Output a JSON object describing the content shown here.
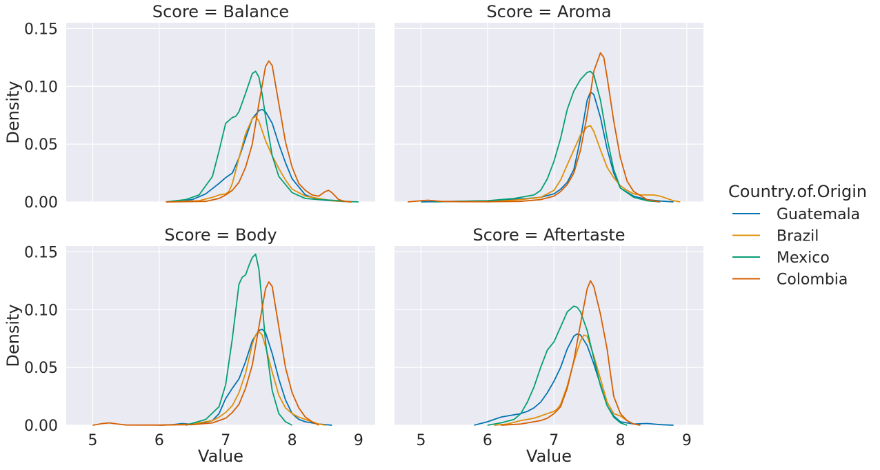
{
  "chart_data": {
    "type": "line",
    "xlabel": "Value",
    "ylabel": "Density",
    "xlim": [
      4.6,
      9.25
    ],
    "ylim": [
      0,
      0.155
    ],
    "xticks": [
      "5",
      "6",
      "7",
      "8",
      "9"
    ],
    "yticks": [
      "0.00",
      "0.05",
      "0.10",
      "0.15"
    ],
    "legend": {
      "title": "Country.of.Origin",
      "placement": "right",
      "entries": [
        "Guatemala",
        "Brazil",
        "Mexico",
        "Colombia"
      ]
    },
    "colors": {
      "Guatemala": "#0173b2",
      "Brazil": "#de8f05",
      "Mexico": "#029e73",
      "Colombia": "#d55e00"
    },
    "grid": true,
    "panels": [
      {
        "title": "Score = Balance",
        "series": [
          {
            "name": "Guatemala",
            "x": [
              6.1,
              6.5,
              6.7,
              6.9,
              7.0,
              7.1,
              7.2,
              7.3,
              7.4,
              7.5,
              7.55,
              7.6,
              7.7,
              7.8,
              7.9,
              8.0,
              8.2,
              8.4,
              8.6,
              8.8,
              8.9
            ],
            "y": [
              0,
              0.002,
              0.007,
              0.016,
              0.021,
              0.025,
              0.038,
              0.055,
              0.072,
              0.079,
              0.08,
              0.078,
              0.068,
              0.05,
              0.034,
              0.02,
              0.006,
              0.002,
              0.001,
              0.0003,
              0
            ]
          },
          {
            "name": "Brazil",
            "x": [
              6.1,
              6.6,
              6.8,
              6.9,
              7.0,
              7.05,
              7.1,
              7.2,
              7.3,
              7.4,
              7.45,
              7.5,
              7.6,
              7.7,
              7.8,
              7.9,
              8.0,
              8.2,
              8.4,
              8.6,
              8.8,
              8.9
            ],
            "y": [
              0,
              0.001,
              0.004,
              0.006,
              0.007,
              0.009,
              0.016,
              0.038,
              0.059,
              0.072,
              0.074,
              0.07,
              0.053,
              0.04,
              0.029,
              0.019,
              0.011,
              0.005,
              0.003,
              0.001,
              0.0003,
              0
            ]
          },
          {
            "name": "Mexico",
            "x": [
              6.1,
              6.4,
              6.6,
              6.8,
              6.9,
              7.0,
              7.1,
              7.15,
              7.2,
              7.3,
              7.4,
              7.45,
              7.5,
              7.55,
              7.6,
              7.7,
              7.8,
              8.0,
              8.2,
              8.4,
              8.6,
              8.8,
              9.0
            ],
            "y": [
              0,
              0.002,
              0.006,
              0.022,
              0.044,
              0.068,
              0.073,
              0.074,
              0.078,
              0.094,
              0.111,
              0.113,
              0.108,
              0.093,
              0.074,
              0.04,
              0.022,
              0.008,
              0.003,
              0.002,
              0.0015,
              0.0005,
              0
            ]
          },
          {
            "name": "Colombia",
            "x": [
              6.1,
              6.7,
              6.9,
              7.0,
              7.1,
              7.2,
              7.3,
              7.4,
              7.5,
              7.6,
              7.65,
              7.7,
              7.8,
              7.9,
              8.0,
              8.1,
              8.2,
              8.3,
              8.4,
              8.5,
              8.55,
              8.6,
              8.7,
              8.8,
              8.9
            ],
            "y": [
              0,
              0.0005,
              0.003,
              0.006,
              0.01,
              0.017,
              0.03,
              0.05,
              0.085,
              0.117,
              0.122,
              0.118,
              0.085,
              0.052,
              0.03,
              0.016,
              0.01,
              0.006,
              0.005,
              0.009,
              0.01,
              0.008,
              0.002,
              0.0005,
              0
            ]
          }
        ]
      },
      {
        "title": "Score = Aroma",
        "series": [
          {
            "name": "Guatemala",
            "x": [
              5.0,
              5.5,
              6.0,
              6.3,
              6.6,
              6.8,
              7.0,
              7.1,
              7.2,
              7.3,
              7.4,
              7.5,
              7.55,
              7.6,
              7.7,
              7.8,
              7.9,
              8.0,
              8.2,
              8.4,
              8.6,
              8.8
            ],
            "y": [
              0,
              0.0005,
              0.001,
              0.002,
              0.003,
              0.004,
              0.007,
              0.011,
              0.017,
              0.028,
              0.055,
              0.088,
              0.095,
              0.093,
              0.073,
              0.046,
              0.025,
              0.012,
              0.005,
              0.002,
              0.0008,
              0
            ]
          },
          {
            "name": "Brazil",
            "x": [
              6.0,
              6.5,
              6.8,
              7.0,
              7.1,
              7.2,
              7.3,
              7.4,
              7.5,
              7.55,
              7.6,
              7.7,
              7.8,
              7.9,
              8.0,
              8.1,
              8.2,
              8.3,
              8.4,
              8.5,
              8.6,
              8.8,
              8.9
            ],
            "y": [
              0,
              0.002,
              0.004,
              0.01,
              0.019,
              0.032,
              0.045,
              0.058,
              0.065,
              0.066,
              0.061,
              0.045,
              0.03,
              0.021,
              0.014,
              0.01,
              0.007,
              0.006,
              0.006,
              0.006,
              0.005,
              0.001,
              0
            ]
          },
          {
            "name": "Mexico",
            "x": [
              5.2,
              6.0,
              6.4,
              6.7,
              6.8,
              6.9,
              7.0,
              7.1,
              7.2,
              7.3,
              7.4,
              7.5,
              7.55,
              7.6,
              7.7,
              7.8,
              7.9,
              8.0,
              8.2,
              8.4,
              8.6
            ],
            "y": [
              0,
              0.001,
              0.003,
              0.006,
              0.01,
              0.02,
              0.035,
              0.055,
              0.08,
              0.096,
              0.106,
              0.112,
              0.113,
              0.11,
              0.088,
              0.055,
              0.028,
              0.012,
              0.004,
              0.001,
              0
            ]
          },
          {
            "name": "Colombia",
            "x": [
              4.8,
              5.0,
              5.1,
              5.3,
              5.6,
              6.0,
              6.5,
              6.8,
              7.0,
              7.1,
              7.2,
              7.3,
              7.4,
              7.5,
              7.6,
              7.7,
              7.75,
              7.8,
              7.9,
              8.0,
              8.1,
              8.2,
              8.4,
              8.6
            ],
            "y": [
              0,
              0.001,
              0.0015,
              0.0005,
              0.0002,
              0.0002,
              0.0005,
              0.002,
              0.005,
              0.009,
              0.015,
              0.025,
              0.045,
              0.075,
              0.113,
              0.129,
              0.125,
              0.108,
              0.07,
              0.038,
              0.018,
              0.009,
              0.002,
              0
            ]
          }
        ]
      },
      {
        "title": "Score = Body",
        "series": [
          {
            "name": "Guatemala",
            "x": [
              6.0,
              6.2,
              6.35,
              6.5,
              6.6,
              6.8,
              6.9,
              7.0,
              7.1,
              7.2,
              7.3,
              7.4,
              7.5,
              7.55,
              7.6,
              7.7,
              7.8,
              7.9,
              8.0,
              8.1,
              8.2,
              8.4,
              8.6
            ],
            "y": [
              0,
              0.0005,
              0.0015,
              0.0008,
              0.001,
              0.004,
              0.01,
              0.023,
              0.032,
              0.04,
              0.055,
              0.073,
              0.082,
              0.083,
              0.08,
              0.062,
              0.04,
              0.022,
              0.01,
              0.005,
              0.003,
              0.001,
              0
            ]
          },
          {
            "name": "Brazil",
            "x": [
              6.0,
              6.5,
              6.8,
              6.9,
              7.0,
              7.1,
              7.2,
              7.3,
              7.4,
              7.45,
              7.5,
              7.55,
              7.6,
              7.7,
              7.8,
              7.9,
              8.0,
              8.1,
              8.2,
              8.3,
              8.4,
              8.5
            ],
            "y": [
              0,
              0.001,
              0.004,
              0.007,
              0.011,
              0.017,
              0.028,
              0.045,
              0.07,
              0.078,
              0.081,
              0.078,
              0.068,
              0.046,
              0.026,
              0.015,
              0.01,
              0.007,
              0.005,
              0.003,
              0.001,
              0
            ]
          },
          {
            "name": "Mexico",
            "x": [
              6.4,
              6.7,
              6.9,
              7.0,
              7.1,
              7.2,
              7.25,
              7.3,
              7.35,
              7.4,
              7.45,
              7.5,
              7.55,
              7.6,
              7.7,
              7.8,
              7.9,
              8.0
            ],
            "y": [
              0,
              0.005,
              0.016,
              0.035,
              0.075,
              0.122,
              0.128,
              0.13,
              0.138,
              0.145,
              0.148,
              0.135,
              0.105,
              0.072,
              0.03,
              0.01,
              0.003,
              0
            ]
          },
          {
            "name": "Colombia",
            "x": [
              5.0,
              5.15,
              5.25,
              5.35,
              5.5,
              6.0,
              6.5,
              6.8,
              7.0,
              7.1,
              7.2,
              7.3,
              7.4,
              7.5,
              7.6,
              7.65,
              7.7,
              7.8,
              7.9,
              8.0,
              8.1,
              8.2,
              8.3,
              8.4
            ],
            "y": [
              0,
              0.0015,
              0.002,
              0.0012,
              0.0002,
              0.0001,
              0.0005,
              0.002,
              0.006,
              0.011,
              0.018,
              0.032,
              0.052,
              0.085,
              0.118,
              0.124,
              0.12,
              0.085,
              0.05,
              0.028,
              0.015,
              0.007,
              0.003,
              0
            ]
          }
        ]
      },
      {
        "title": "Score = Aftertaste",
        "series": [
          {
            "name": "Guatemala",
            "x": [
              5.8,
              5.9,
              6.0,
              6.1,
              6.2,
              6.4,
              6.5,
              6.6,
              6.7,
              6.8,
              6.9,
              7.0,
              7.1,
              7.2,
              7.3,
              7.35,
              7.4,
              7.5,
              7.6,
              7.7,
              7.8,
              7.9,
              8.0,
              8.2,
              8.4,
              8.6,
              8.8
            ],
            "y": [
              0,
              0.0015,
              0.003,
              0.005,
              0.007,
              0.009,
              0.01,
              0.012,
              0.015,
              0.02,
              0.028,
              0.038,
              0.05,
              0.066,
              0.077,
              0.079,
              0.078,
              0.069,
              0.053,
              0.035,
              0.017,
              0.008,
              0.003,
              0.001,
              0.0015,
              0.0005,
              0
            ]
          },
          {
            "name": "Brazil",
            "x": [
              6.1,
              6.3,
              6.5,
              6.7,
              6.8,
              6.9,
              7.0,
              7.05,
              7.1,
              7.2,
              7.3,
              7.4,
              7.45,
              7.5,
              7.6,
              7.7,
              7.8,
              7.9,
              8.0,
              8.1,
              8.2,
              8.3
            ],
            "y": [
              0,
              0.001,
              0.004,
              0.006,
              0.008,
              0.01,
              0.012,
              0.014,
              0.018,
              0.034,
              0.055,
              0.073,
              0.078,
              0.077,
              0.06,
              0.04,
              0.02,
              0.01,
              0.008,
              0.004,
              0.001,
              0
            ]
          },
          {
            "name": "Mexico",
            "x": [
              6.0,
              6.2,
              6.4,
              6.5,
              6.6,
              6.7,
              6.8,
              6.9,
              7.0,
              7.1,
              7.2,
              7.3,
              7.35,
              7.4,
              7.5,
              7.6,
              7.7,
              7.8,
              7.9,
              8.0,
              8.1
            ],
            "y": [
              0,
              0.002,
              0.005,
              0.01,
              0.02,
              0.033,
              0.05,
              0.065,
              0.072,
              0.085,
              0.098,
              0.103,
              0.102,
              0.098,
              0.082,
              0.058,
              0.034,
              0.017,
              0.007,
              0.002,
              0
            ]
          },
          {
            "name": "Colombia",
            "x": [
              6.2,
              6.5,
              6.7,
              6.8,
              6.9,
              7.0,
              7.1,
              7.2,
              7.3,
              7.4,
              7.5,
              7.55,
              7.6,
              7.7,
              7.8,
              7.85,
              7.9,
              8.0,
              8.1,
              8.2,
              8.3
            ],
            "y": [
              0,
              0.001,
              0.003,
              0.004,
              0.006,
              0.01,
              0.016,
              0.032,
              0.056,
              0.088,
              0.118,
              0.125,
              0.12,
              0.096,
              0.066,
              0.045,
              0.025,
              0.01,
              0.004,
              0.001,
              0
            ]
          }
        ]
      }
    ]
  }
}
